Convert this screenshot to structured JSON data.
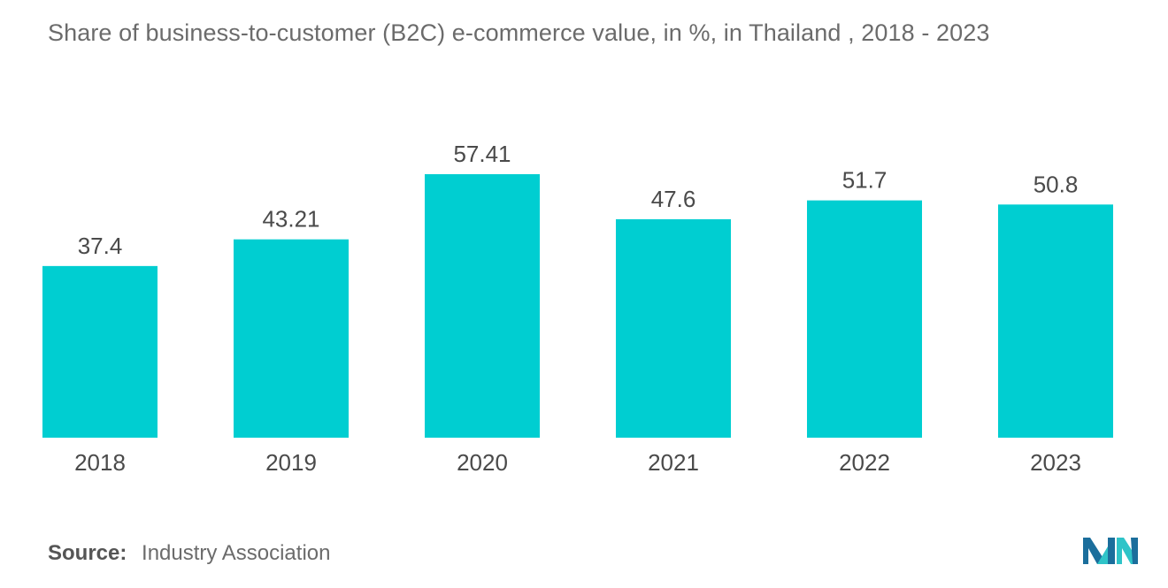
{
  "chart_data": {
    "type": "bar",
    "title": "Share of business-to-customer (B2C) e-commerce value, in %, in Thailand , 2018 - 2023",
    "categories": [
      "2018",
      "2019",
      "2020",
      "2021",
      "2022",
      "2023"
    ],
    "values": [
      37.4,
      43.21,
      57.41,
      47.6,
      51.7,
      50.8
    ],
    "value_labels": [
      "37.4",
      "43.21",
      "57.41",
      "47.6",
      "51.7",
      "50.8"
    ],
    "xlabel": "",
    "ylabel": "",
    "ylim": [
      0,
      57.41
    ],
    "grid": false,
    "legend": "none",
    "bar_color": "#00CED1"
  },
  "source": {
    "label": "Source:",
    "text": "Industry Association"
  },
  "logo": {
    "icon": "mordor-intelligence-logo-icon",
    "colors": [
      "#1b6e9c",
      "#2fc4c8"
    ]
  }
}
